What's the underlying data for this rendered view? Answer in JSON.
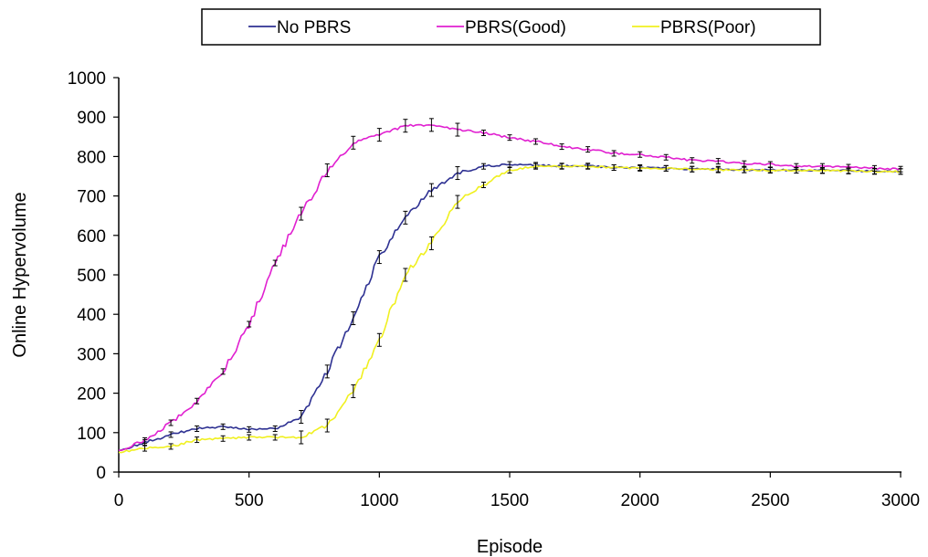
{
  "chart_data": {
    "type": "line",
    "title": "",
    "xlabel": "Episode",
    "ylabel": "Online Hypervolume",
    "xlim": [
      0,
      3000
    ],
    "ylim": [
      0,
      1000
    ],
    "xticks": [
      0,
      500,
      1000,
      1500,
      2000,
      2500,
      3000
    ],
    "yticks": [
      0,
      100,
      200,
      300,
      400,
      500,
      600,
      700,
      800,
      900,
      1000
    ],
    "grid": false,
    "legend_position": "top",
    "error_bars": true,
    "x": [
      0,
      100,
      200,
      300,
      400,
      500,
      600,
      700,
      800,
      900,
      1000,
      1100,
      1200,
      1300,
      1400,
      1500,
      1600,
      1700,
      1800,
      1900,
      2000,
      2100,
      2200,
      2300,
      2400,
      2500,
      2600,
      2700,
      2800,
      2900,
      3000
    ],
    "series": [
      {
        "name": "No PBRS",
        "color": "#2e3192",
        "values": [
          55,
          75,
          95,
          110,
          115,
          108,
          110,
          140,
          255,
          390,
          545,
          645,
          715,
          758,
          775,
          780,
          778,
          776,
          776,
          772,
          772,
          770,
          768,
          768,
          766,
          766,
          765,
          765,
          764,
          763,
          762
        ]
      },
      {
        "name": "PBRS(Good)",
        "color": "#e020d0",
        "values": [
          55,
          80,
          125,
          180,
          255,
          375,
          530,
          655,
          765,
          835,
          855,
          878,
          880,
          868,
          860,
          848,
          838,
          825,
          818,
          808,
          805,
          798,
          790,
          788,
          782,
          780,
          775,
          775,
          773,
          770,
          768
        ]
      },
      {
        "name": "PBRS(Poor)",
        "color": "#f0f020",
        "values": [
          50,
          60,
          65,
          82,
          85,
          88,
          88,
          88,
          118,
          205,
          335,
          500,
          580,
          685,
          728,
          765,
          775,
          775,
          775,
          772,
          770,
          770,
          768,
          766,
          766,
          765,
          765,
          764,
          763,
          762,
          762
        ]
      }
    ]
  }
}
